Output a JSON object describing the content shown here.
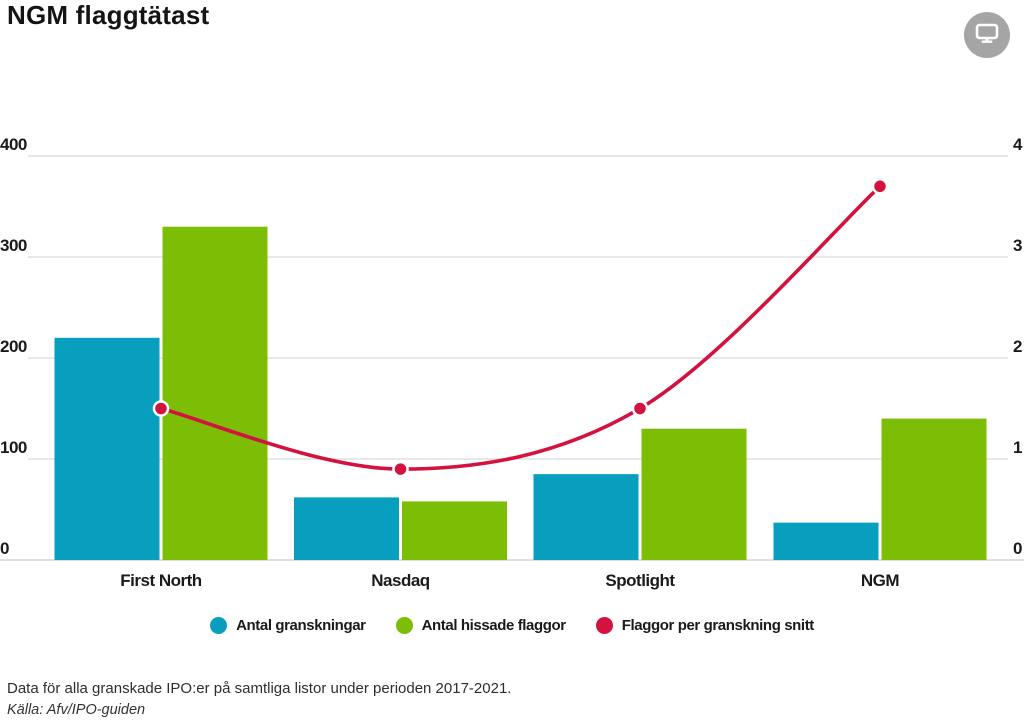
{
  "title": "NGM flaggtätast",
  "header": {
    "export_button_icon": "monitor-icon"
  },
  "chart_data": {
    "type": "bar",
    "subtype": "grouped bars with overlaid smoothed line on secondary axis",
    "title": "NGM flaggtätast",
    "categories": [
      "First North",
      "Nasdaq",
      "Spotlight",
      "NGM"
    ],
    "series": [
      {
        "name": "Antal granskningar",
        "type": "bar",
        "axis": "left",
        "color": "#089fbf",
        "values": [
          220,
          62,
          85,
          37
        ]
      },
      {
        "name": "Antal hissade flaggor",
        "type": "bar",
        "axis": "left",
        "color": "#7cbe06",
        "values": [
          330,
          58,
          130,
          140
        ]
      },
      {
        "name": "Flaggor per granskning snitt",
        "type": "line",
        "axis": "right",
        "color": "#d2123f",
        "values": [
          1.5,
          0.9,
          1.5,
          3.7
        ]
      }
    ],
    "left_axis": {
      "ticks": [
        "0",
        "100",
        "200",
        "300",
        "400"
      ],
      "min": 0,
      "max": 400
    },
    "right_axis": {
      "ticks": [
        "0",
        "1",
        "2",
        "3",
        "4"
      ],
      "min": 0,
      "max": 4
    },
    "grid": true,
    "legend_position": "bottom"
  },
  "colors": {
    "blue": "#089fbf",
    "green": "#7cbe06",
    "red": "#d2123f",
    "gridline": "#d9d9d9",
    "axis_line": "#c9c9c9",
    "export_button": "#a5a5a5"
  },
  "footer": {
    "note": "Data för alla granskade IPO:er på samtliga listor under perioden 2017-2021.",
    "source": "Källa: Afv/IPO-guiden"
  }
}
